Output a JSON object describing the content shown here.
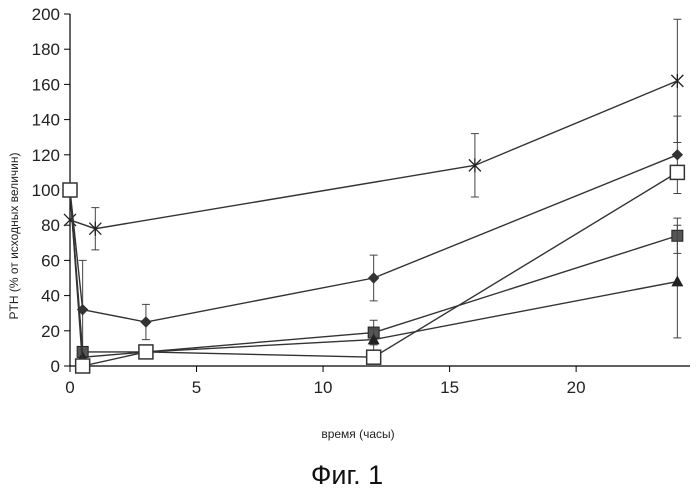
{
  "chart_data": {
    "type": "line",
    "xlabel": "время (часы)",
    "ylabel": "PTH (% от исходных величин)",
    "caption": "Фиг. 1",
    "xlim": [
      0,
      24.5
    ],
    "ylim": [
      0,
      200
    ],
    "xticks": [
      0,
      5,
      10,
      15,
      20
    ],
    "yticks": [
      0,
      20,
      40,
      60,
      80,
      100,
      120,
      140,
      160,
      180,
      200
    ],
    "grid": false,
    "series": [
      {
        "marker": "cross",
        "x": [
          0,
          1,
          16,
          24
        ],
        "y": [
          83,
          78,
          114,
          162
        ],
        "err": [
          0,
          12,
          18,
          35
        ]
      },
      {
        "marker": "diamond",
        "x": [
          0,
          0.5,
          3,
          12,
          24
        ],
        "y": [
          100,
          32,
          25,
          50,
          120
        ],
        "err": [
          0,
          28,
          10,
          13,
          22
        ]
      },
      {
        "marker": "filled-square",
        "x": [
          0,
          0.5,
          3,
          12,
          24
        ],
        "y": [
          100,
          8,
          8,
          19,
          74
        ],
        "err": [
          0,
          0,
          0,
          7,
          10
        ]
      },
      {
        "marker": "triangle",
        "x": [
          0,
          0.5,
          3,
          12,
          24
        ],
        "y": [
          100,
          5,
          8,
          15,
          48
        ],
        "err": [
          0,
          0,
          0,
          6,
          32
        ]
      },
      {
        "marker": "open-square",
        "x": [
          0,
          0.5,
          3,
          12,
          24
        ],
        "y": [
          100,
          0,
          8,
          5,
          110
        ],
        "err": [
          0,
          0,
          0,
          0,
          0
        ]
      }
    ]
  }
}
